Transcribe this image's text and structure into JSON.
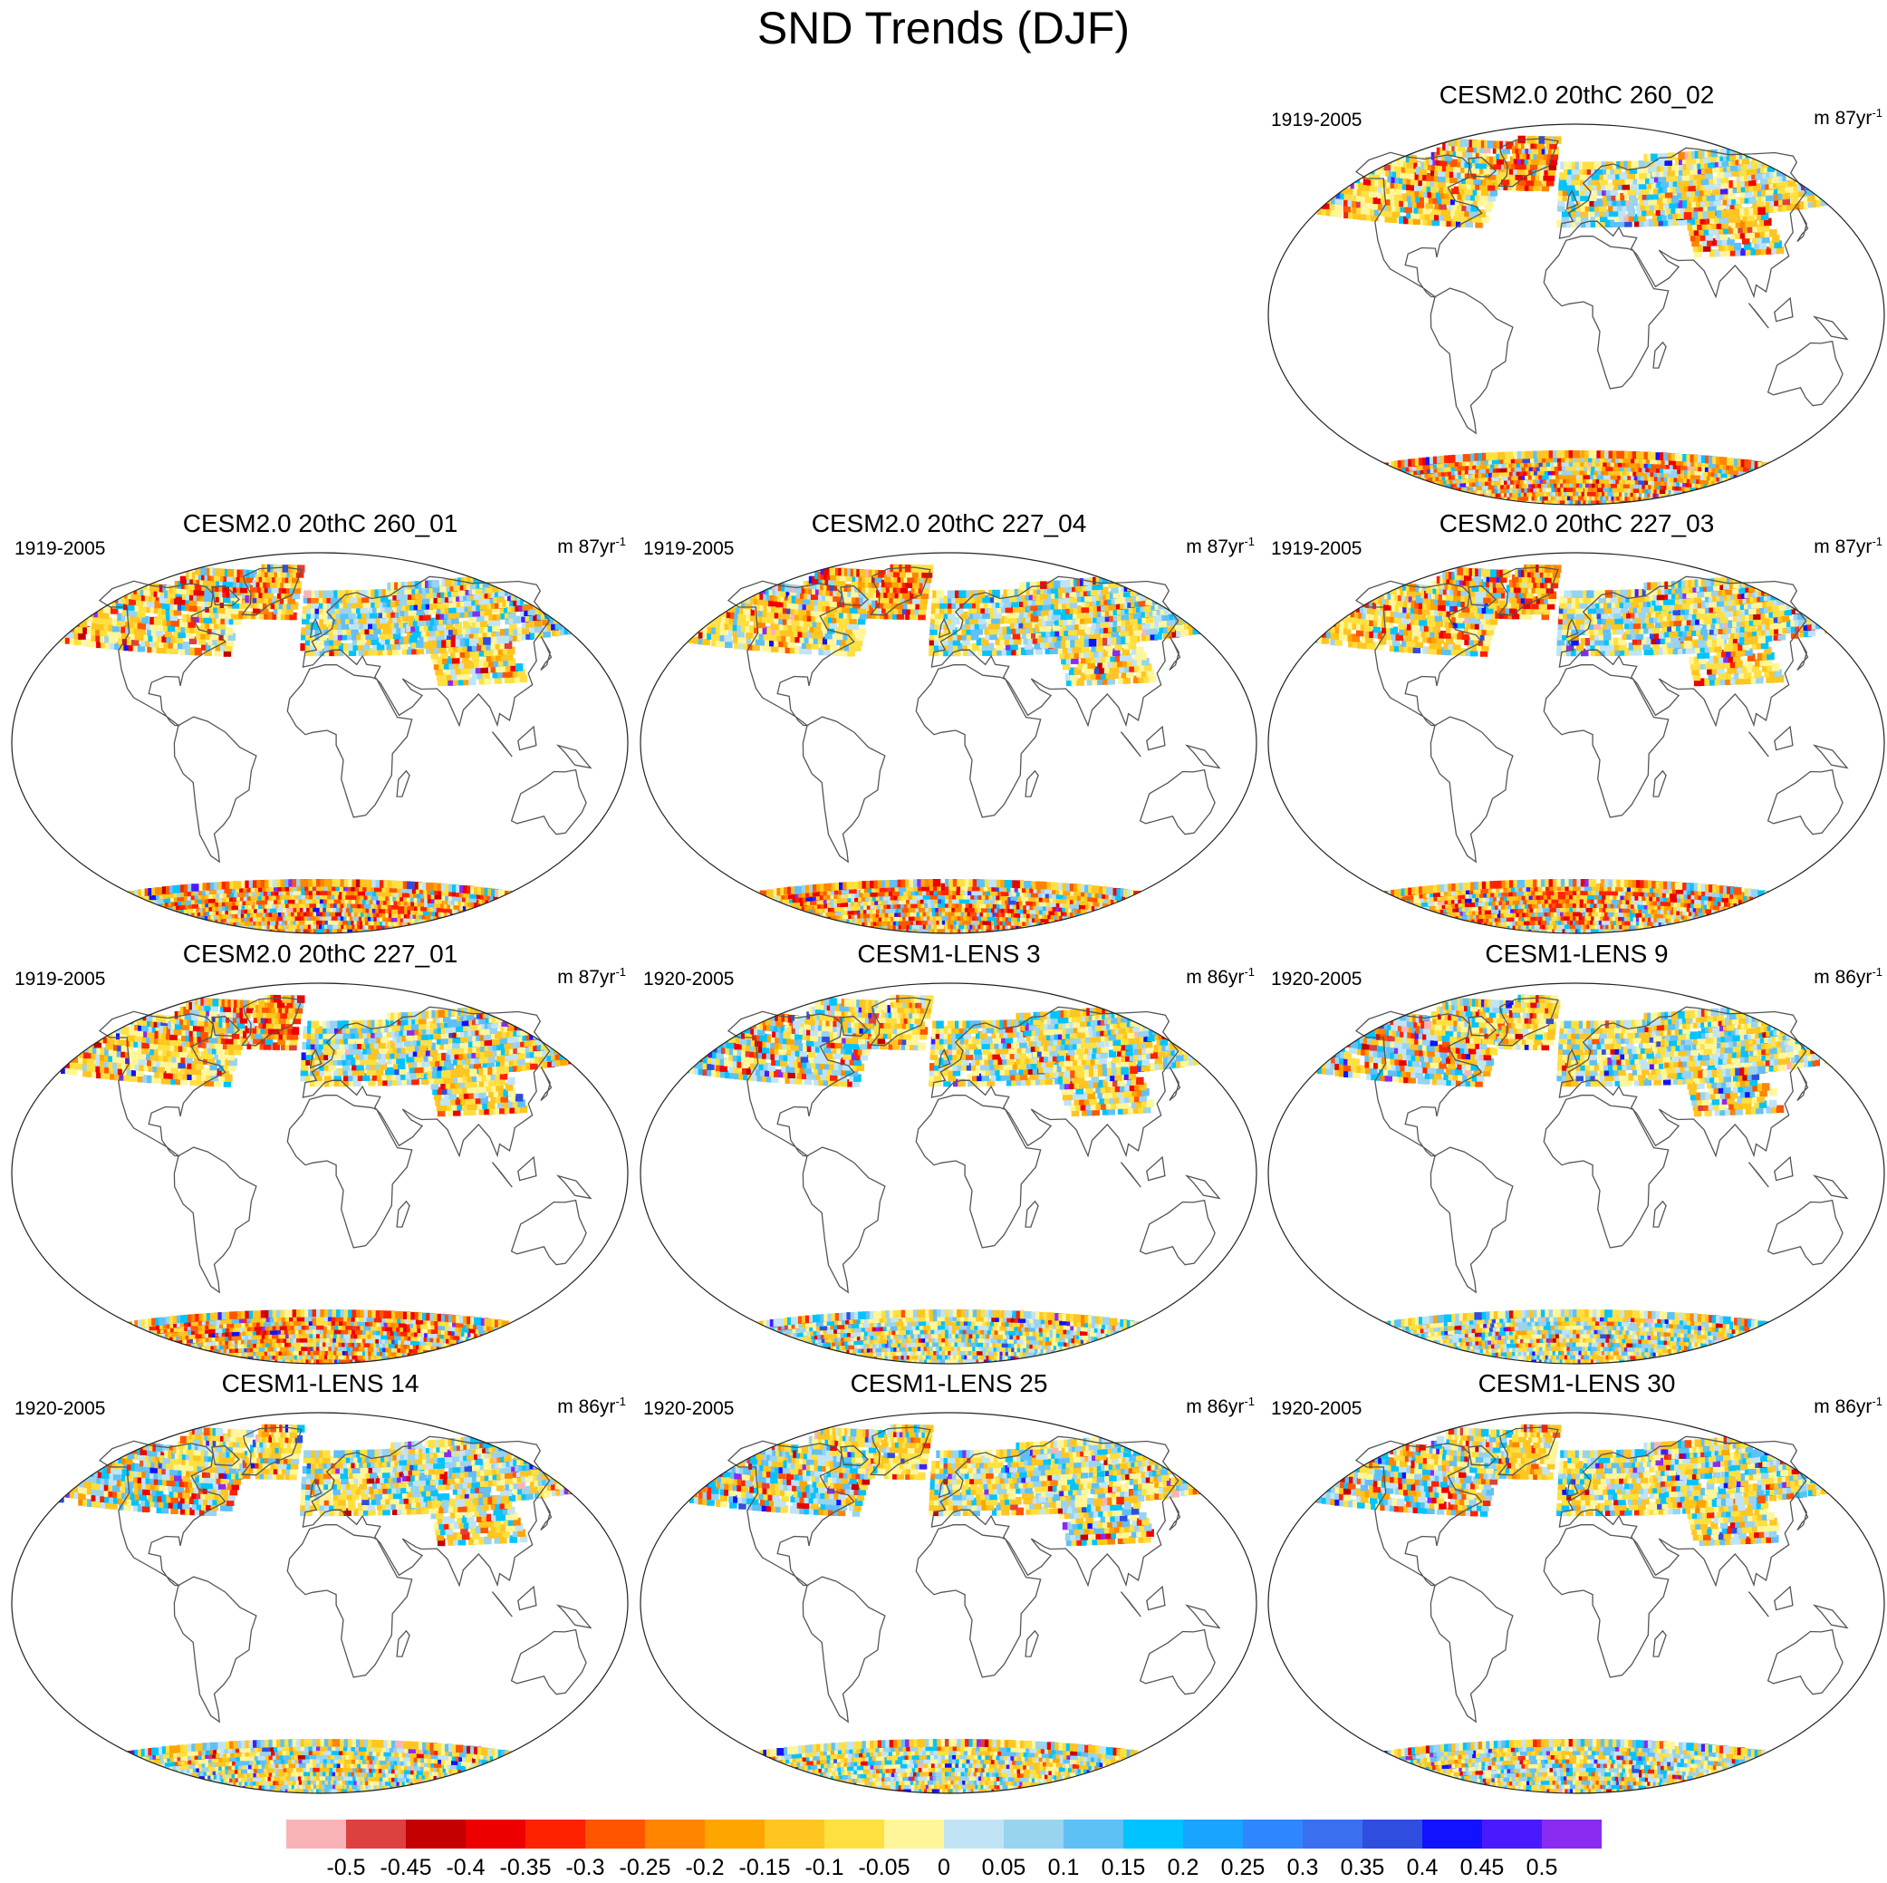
{
  "title": "SND Trends (DJF)",
  "panels": [
    {
      "slot": 2,
      "title": "CESM2.0 20thC 260_02",
      "years": "1919-2005",
      "unit_prefix": "m 87yr",
      "unit_exp": "-1",
      "pattern": "cesm2"
    },
    {
      "slot": 3,
      "title": "CESM2.0 20thC 260_01",
      "years": "1919-2005",
      "unit_prefix": "m 87yr",
      "unit_exp": "-1",
      "pattern": "cesm2"
    },
    {
      "slot": 4,
      "title": "CESM2.0 20thC 227_04",
      "years": "1919-2005",
      "unit_prefix": "m 87yr",
      "unit_exp": "-1",
      "pattern": "cesm2"
    },
    {
      "slot": 5,
      "title": "CESM2.0 20thC 227_03",
      "years": "1919-2005",
      "unit_prefix": "m 87yr",
      "unit_exp": "-1",
      "pattern": "cesm2"
    },
    {
      "slot": 6,
      "title": "CESM2.0 20thC 227_01",
      "years": "1919-2005",
      "unit_prefix": "m 87yr",
      "unit_exp": "-1",
      "pattern": "cesm2"
    },
    {
      "slot": 7,
      "title": "CESM1-LENS 3",
      "years": "1920-2005",
      "unit_prefix": "m 86yr",
      "unit_exp": "-1",
      "pattern": "lens"
    },
    {
      "slot": 8,
      "title": "CESM1-LENS 9",
      "years": "1920-2005",
      "unit_prefix": "m 86yr",
      "unit_exp": "-1",
      "pattern": "lens"
    },
    {
      "slot": 9,
      "title": "CESM1-LENS 14",
      "years": "1920-2005",
      "unit_prefix": "m 86yr",
      "unit_exp": "-1",
      "pattern": "lens"
    },
    {
      "slot": 10,
      "title": "CESM1-LENS 25",
      "years": "1920-2005",
      "unit_prefix": "m 86yr",
      "unit_exp": "-1",
      "pattern": "lens"
    },
    {
      "slot": 11,
      "title": "CESM1-LENS 30",
      "years": "1920-2005",
      "unit_prefix": "m 86yr",
      "unit_exp": "-1",
      "pattern": "lens"
    }
  ],
  "colorbar": {
    "colors": [
      "#f9b3b6",
      "#de4040",
      "#c40000",
      "#ee0000",
      "#ff2200",
      "#ff5500",
      "#ff8500",
      "#ffa500",
      "#ffc520",
      "#ffe040",
      "#fff69a",
      "#c0e4f6",
      "#98d3f0",
      "#5fc0f5",
      "#00c3ff",
      "#18a4ff",
      "#2f86ff",
      "#3a6ff0",
      "#2f4ee0",
      "#1212ff",
      "#4a1aff",
      "#8a2bf2"
    ],
    "labels": [
      "-0.5",
      "-0.45",
      "-0.4",
      "-0.35",
      "-0.3",
      "-0.25",
      "-0.2",
      "-0.15",
      "-0.1",
      "-0.05",
      "0",
      "0.05",
      "0.1",
      "0.15",
      "0.2",
      "0.25",
      "0.3",
      "0.35",
      "0.4",
      "0.45",
      "0.5"
    ]
  }
}
